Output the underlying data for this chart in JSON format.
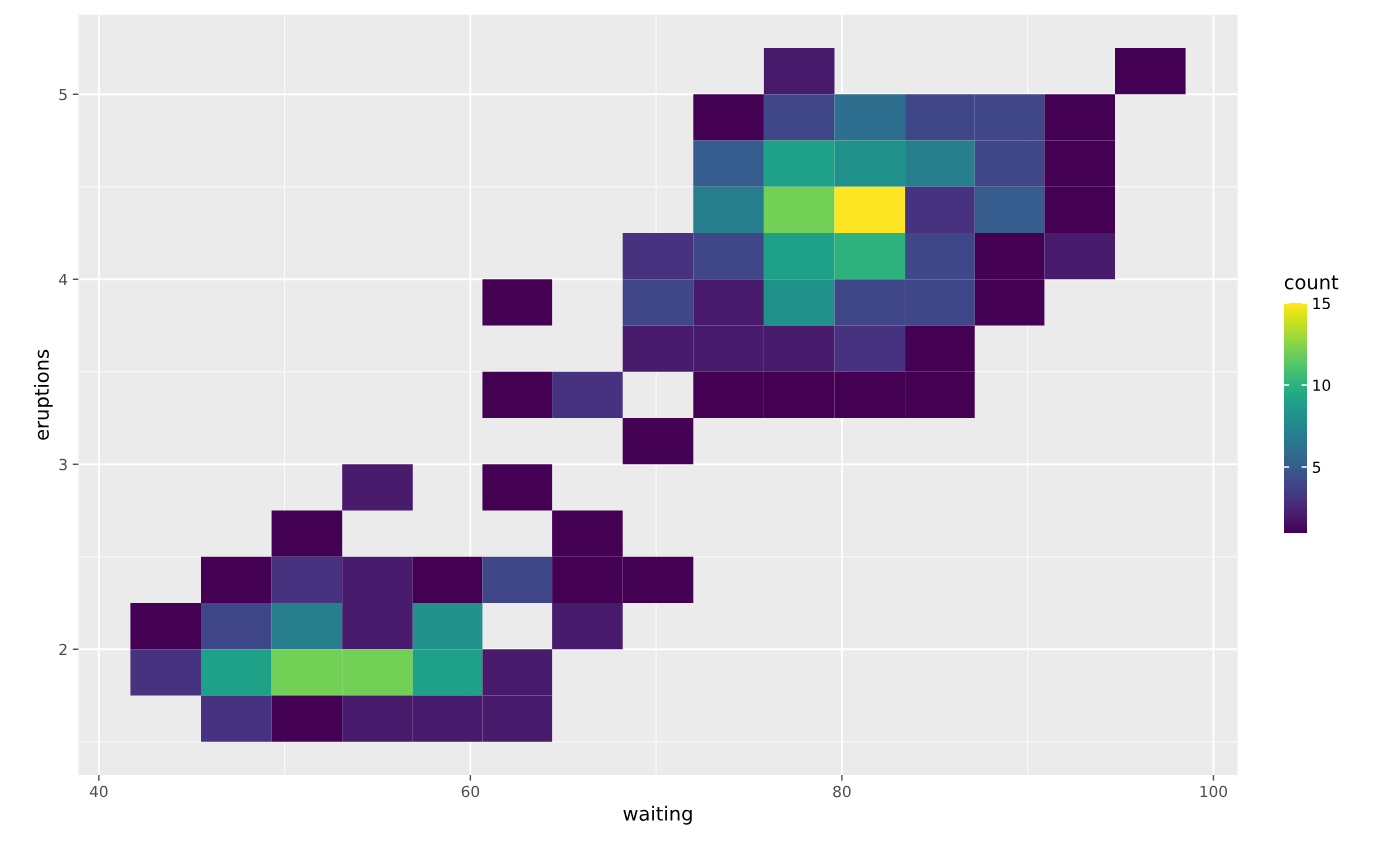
{
  "chart_data": {
    "type": "heatmap",
    "xlabel": "waiting",
    "ylabel": "eruptions",
    "clabel": "count",
    "xlim": [
      38.9,
      101.3
    ],
    "xticks": [
      40,
      60,
      80,
      100
    ],
    "ylim": [
      1.32,
      5.43
    ],
    "yticks": [
      2,
      3,
      4,
      5
    ],
    "grid": true,
    "clim": [
      1,
      15
    ],
    "cticks": [
      5,
      10,
      15
    ],
    "x": [
      43.6,
      47.4,
      51.2,
      55.0,
      58.8,
      62.5,
      66.3,
      70.1,
      73.9,
      77.7,
      81.5,
      85.3,
      89.0,
      92.8,
      96.6
    ],
    "y": [
      5.125,
      4.875,
      4.625,
      4.375,
      4.125,
      3.875,
      3.625,
      3.375,
      3.125,
      2.875,
      2.625,
      2.375,
      2.125,
      1.875,
      1.625
    ],
    "cells": [
      [
        null,
        null,
        null,
        null,
        null,
        null,
        null,
        null,
        null,
        2,
        null,
        null,
        null,
        null,
        1
      ],
      [
        null,
        null,
        null,
        null,
        null,
        null,
        null,
        null,
        1,
        4,
        6,
        4,
        4,
        1,
        null
      ],
      [
        null,
        null,
        null,
        null,
        null,
        null,
        null,
        null,
        5,
        9,
        8,
        7,
        4,
        1,
        null
      ],
      [
        null,
        null,
        null,
        null,
        null,
        null,
        null,
        null,
        7,
        12,
        15,
        3,
        5,
        1,
        null
      ],
      [
        null,
        null,
        null,
        null,
        null,
        null,
        null,
        3,
        4,
        9,
        10,
        4,
        1,
        2,
        null
      ],
      [
        null,
        null,
        null,
        null,
        null,
        1,
        null,
        4,
        2,
        8,
        4,
        4,
        1,
        null,
        null
      ],
      [
        null,
        null,
        null,
        null,
        null,
        null,
        null,
        2,
        2,
        2,
        3,
        1,
        null,
        null,
        null
      ],
      [
        null,
        null,
        null,
        null,
        null,
        1,
        3,
        null,
        1,
        1,
        1,
        1,
        null,
        null,
        null
      ],
      [
        null,
        null,
        null,
        null,
        null,
        null,
        null,
        1,
        null,
        null,
        null,
        null,
        null,
        null,
        null
      ],
      [
        null,
        null,
        null,
        2,
        null,
        1,
        null,
        null,
        null,
        null,
        null,
        null,
        null,
        null,
        null
      ],
      [
        null,
        null,
        1,
        null,
        null,
        null,
        1,
        null,
        null,
        null,
        null,
        null,
        null,
        null,
        null
      ],
      [
        null,
        1,
        3,
        2,
        1,
        4,
        1,
        1,
        null,
        null,
        null,
        null,
        null,
        null,
        null
      ],
      [
        1,
        4,
        7,
        2,
        8,
        null,
        2,
        null,
        null,
        null,
        null,
        null,
        null,
        null,
        null
      ],
      [
        3,
        9,
        12,
        12,
        9,
        2,
        null,
        null,
        null,
        null,
        null,
        null,
        null,
        null,
        null
      ],
      [
        null,
        3,
        1,
        2,
        2,
        2,
        null,
        null,
        null,
        null,
        null,
        null,
        null,
        null,
        null
      ]
    ]
  }
}
